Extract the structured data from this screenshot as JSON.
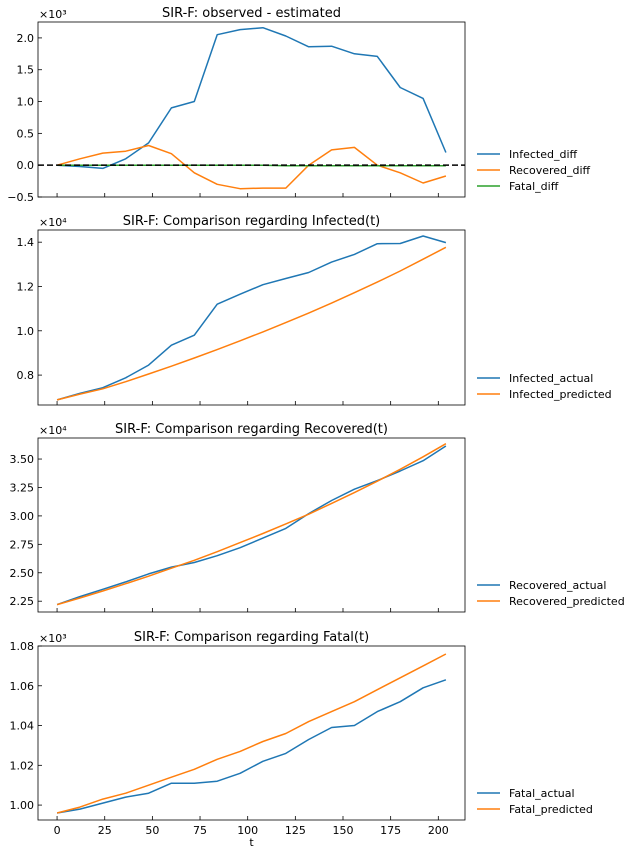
{
  "chart_data": [
    {
      "type": "line",
      "title": "SIR-F: observed - estimated",
      "xlabel": "",
      "ylabel": "",
      "y_multiplier": "×10³",
      "ylim": [
        -0.5,
        2.25
      ],
      "yticks": [
        -0.5,
        0.0,
        0.5,
        1.0,
        1.5,
        2.0
      ],
      "ytick_labels": [
        "−0.5",
        "0.0",
        "0.5",
        "1.0",
        "1.5",
        "2.0"
      ],
      "xlim": [
        -10,
        214
      ],
      "xticks": [
        0,
        25,
        50,
        75,
        100,
        125,
        150,
        175,
        200
      ],
      "show_xtick_labels": false,
      "zero_line": true,
      "x": [
        0,
        12,
        24,
        36,
        48,
        60,
        72,
        84,
        96,
        108,
        120,
        132,
        144,
        156,
        168,
        180,
        192,
        204
      ],
      "series": [
        {
          "name": "Infected_diff",
          "color": "#1f77b4",
          "values": [
            0.0,
            -0.02,
            -0.05,
            0.1,
            0.35,
            0.9,
            1.0,
            2.05,
            2.13,
            2.16,
            2.03,
            1.86,
            1.87,
            1.75,
            1.71,
            1.22,
            1.05,
            0.2
          ]
        },
        {
          "name": "Recovered_diff",
          "color": "#ff7f0e",
          "values": [
            0.0,
            0.1,
            0.19,
            0.22,
            0.31,
            0.18,
            -0.12,
            -0.3,
            -0.37,
            -0.36,
            -0.36,
            0.0,
            0.24,
            0.28,
            0.0,
            -0.12,
            -0.28,
            -0.17
          ]
        },
        {
          "name": "Fatal_diff",
          "color": "#2ca02c",
          "values": [
            0.0,
            0.0,
            0.0,
            0.0,
            0.0,
            0.0,
            0.0,
            0.0,
            0.0,
            0.0,
            -0.01,
            -0.01,
            -0.01,
            -0.01,
            -0.01,
            -0.01,
            -0.01,
            -0.01
          ]
        }
      ]
    },
    {
      "type": "line",
      "title": "SIR-F: Comparison regarding Infected(t)",
      "xlabel": "",
      "ylabel": "",
      "y_multiplier": "×10⁴",
      "ylim": [
        0.665,
        1.455
      ],
      "yticks": [
        0.8,
        1.0,
        1.2,
        1.4
      ],
      "ytick_labels": [
        "0.8",
        "1.0",
        "1.2",
        "1.4"
      ],
      "xlim": [
        -10,
        214
      ],
      "xticks": [
        0,
        25,
        50,
        75,
        100,
        125,
        150,
        175,
        200
      ],
      "show_xtick_labels": false,
      "x": [
        0,
        12,
        24,
        36,
        48,
        60,
        72,
        84,
        96,
        108,
        120,
        132,
        144,
        156,
        168,
        180,
        192,
        204
      ],
      "series": [
        {
          "name": "Infected_actual",
          "color": "#1f77b4",
          "values": [
            0.688,
            0.718,
            0.743,
            0.788,
            0.845,
            0.935,
            0.98,
            1.12,
            1.165,
            1.208,
            1.236,
            1.263,
            1.31,
            1.345,
            1.393,
            1.394,
            1.428,
            1.398
          ]
        },
        {
          "name": "Infected_predicted",
          "color": "#ff7f0e",
          "values": [
            0.688,
            0.714,
            0.738,
            0.77,
            0.805,
            0.84,
            0.877,
            0.915,
            0.955,
            0.995,
            1.037,
            1.08,
            1.125,
            1.172,
            1.22,
            1.27,
            1.323,
            1.377
          ]
        }
      ]
    },
    {
      "type": "line",
      "title": "SIR-F: Comparison regarding Recovered(t)",
      "xlabel": "",
      "ylabel": "",
      "y_multiplier": "×10⁴",
      "ylim": [
        2.155,
        3.685
      ],
      "yticks": [
        2.25,
        2.5,
        2.75,
        3.0,
        3.25,
        3.5
      ],
      "ytick_labels": [
        "2.25",
        "2.50",
        "2.75",
        "3.00",
        "3.25",
        "3.50"
      ],
      "xlim": [
        -10,
        214
      ],
      "xticks": [
        0,
        25,
        50,
        75,
        100,
        125,
        150,
        175,
        200
      ],
      "show_xtick_labels": false,
      "x": [
        0,
        12,
        24,
        36,
        48,
        60,
        72,
        84,
        96,
        108,
        120,
        132,
        144,
        156,
        168,
        180,
        192,
        204
      ],
      "series": [
        {
          "name": "Recovered_actual",
          "color": "#1f77b4",
          "values": [
            2.22,
            2.29,
            2.355,
            2.42,
            2.49,
            2.55,
            2.59,
            2.65,
            2.72,
            2.805,
            2.89,
            3.02,
            3.135,
            3.235,
            3.31,
            3.395,
            3.485,
            3.615
          ]
        },
        {
          "name": "Recovered_predicted",
          "color": "#ff7f0e",
          "values": [
            2.22,
            2.278,
            2.34,
            2.404,
            2.47,
            2.54,
            2.61,
            2.685,
            2.765,
            2.845,
            2.93,
            3.015,
            3.11,
            3.205,
            3.305,
            3.41,
            3.52,
            3.635
          ]
        }
      ]
    },
    {
      "type": "line",
      "title": "SIR-F: Comparison regarding Fatal(t)",
      "xlabel": "t",
      "ylabel": "",
      "y_multiplier": "×10³",
      "ylim": [
        0.9925,
        1.08
      ],
      "yticks": [
        1.0,
        1.02,
        1.04,
        1.06,
        1.08
      ],
      "ytick_labels": [
        "1.00",
        "1.02",
        "1.04",
        "1.06",
        "1.08"
      ],
      "xlim": [
        -10,
        214
      ],
      "xticks": [
        0,
        25,
        50,
        75,
        100,
        125,
        150,
        175,
        200
      ],
      "xtick_labels": [
        "0",
        "25",
        "50",
        "75",
        "100",
        "125",
        "150",
        "175",
        "200"
      ],
      "show_xtick_labels": true,
      "x": [
        0,
        12,
        24,
        36,
        48,
        60,
        72,
        84,
        96,
        108,
        120,
        132,
        144,
        156,
        168,
        180,
        192,
        204
      ],
      "series": [
        {
          "name": "Fatal_actual",
          "color": "#1f77b4",
          "values": [
            0.996,
            0.998,
            1.001,
            1.004,
            1.006,
            1.011,
            1.011,
            1.012,
            1.016,
            1.022,
            1.026,
            1.033,
            1.039,
            1.04,
            1.047,
            1.052,
            1.059,
            1.063
          ]
        },
        {
          "name": "Fatal_predicted",
          "color": "#ff7f0e",
          "values": [
            0.996,
            0.999,
            1.003,
            1.006,
            1.01,
            1.014,
            1.018,
            1.023,
            1.027,
            1.032,
            1.036,
            1.042,
            1.047,
            1.052,
            1.058,
            1.064,
            1.07,
            1.076
          ]
        }
      ]
    }
  ]
}
